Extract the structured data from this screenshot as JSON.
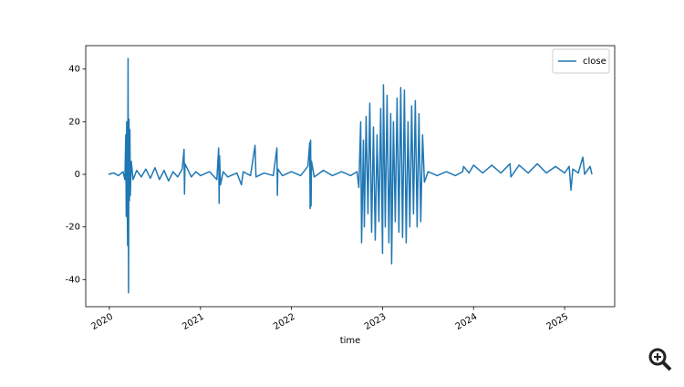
{
  "chart_data": {
    "type": "line",
    "xlabel": "time",
    "x": [
      2019.99,
      2020.05,
      2020.1,
      2020.15,
      2020.17,
      2020.18,
      2020.185,
      2020.19,
      2020.2,
      2020.205,
      2020.21,
      2020.215,
      2020.22,
      2020.225,
      2020.23,
      2020.24,
      2020.26,
      2020.3,
      2020.35,
      2020.4,
      2020.45,
      2020.5,
      2020.55,
      2020.6,
      2020.65,
      2020.7,
      2020.75,
      2020.8,
      2020.82,
      2020.825,
      2020.83,
      2020.9,
      2020.95,
      2021.0,
      2021.1,
      2021.18,
      2021.2,
      2021.205,
      2021.21,
      2021.22,
      2021.25,
      2021.3,
      2021.4,
      2021.45,
      2021.47,
      2021.55,
      2021.6,
      2021.61,
      2021.7,
      2021.8,
      2021.84,
      2021.845,
      2021.85,
      2021.9,
      2022.0,
      2022.1,
      2022.18,
      2022.2,
      2022.205,
      2022.21,
      2022.215,
      2022.22,
      2022.25,
      2022.35,
      2022.45,
      2022.55,
      2022.65,
      2022.72,
      2022.74,
      2022.76,
      2022.77,
      2022.79,
      2022.8,
      2022.82,
      2022.84,
      2022.86,
      2022.88,
      2022.9,
      2022.92,
      2022.94,
      2022.96,
      2022.98,
      2023.0,
      2023.01,
      2023.03,
      2023.05,
      2023.07,
      2023.09,
      2023.1,
      2023.12,
      2023.14,
      2023.16,
      2023.18,
      2023.2,
      2023.22,
      2023.24,
      2023.26,
      2023.28,
      2023.3,
      2023.32,
      2023.34,
      2023.36,
      2023.38,
      2023.4,
      2023.42,
      2023.44,
      2023.46,
      2023.5,
      2023.6,
      2023.7,
      2023.8,
      2023.88,
      2023.89,
      2023.95,
      2024.0,
      2024.1,
      2024.2,
      2024.3,
      2024.4,
      2024.41,
      2024.5,
      2024.6,
      2024.7,
      2024.8,
      2024.9,
      2025.0,
      2025.05,
      2025.07,
      2025.09,
      2025.15,
      2025.2,
      2025.22,
      2025.28,
      2025.3
    ],
    "series": [
      {
        "name": "close",
        "color": "#1f77b4",
        "values": [
          0,
          0.5,
          -0.5,
          1,
          -2,
          15,
          -16,
          20,
          -27,
          44,
          -45,
          21,
          -10,
          17,
          -8,
          5,
          -2,
          1.5,
          -1,
          2,
          -1.5,
          2.5,
          -2,
          1.5,
          -2.5,
          1,
          -1,
          2,
          9.5,
          -7.5,
          4,
          -1,
          1,
          -0.5,
          1,
          -2,
          10,
          -11,
          7,
          -4,
          1,
          -1,
          0.5,
          -4,
          1,
          -0.5,
          11,
          -1,
          0.5,
          -0.5,
          10,
          -8,
          2,
          -0.5,
          1,
          -0.5,
          3,
          12,
          -13,
          13,
          -12,
          5,
          -1,
          1.5,
          -0.5,
          1,
          -0.5,
          1,
          -5,
          20,
          -26,
          13,
          -20,
          22,
          -15,
          27,
          -22,
          18,
          -25,
          15,
          -18,
          25,
          -30,
          34,
          -20,
          30,
          -26,
          23,
          -34,
          20,
          -18,
          29,
          -22,
          33,
          -24,
          32,
          -26,
          20,
          -20,
          26,
          -15,
          28,
          -20,
          23,
          -18,
          15,
          -3,
          1,
          -0.5,
          1,
          -0.5,
          1,
          3,
          0.5,
          3.5,
          0.5,
          3.5,
          0.5,
          4,
          -1,
          3.5,
          0.5,
          4,
          0.5,
          3,
          0.5,
          3,
          -6,
          2,
          0.5,
          6.5,
          0,
          3,
          0
        ]
      }
    ],
    "xlim": [
      2019.74,
      2025.55
    ],
    "xticks": [
      2020,
      2021,
      2022,
      2023,
      2024,
      2025
    ],
    "ylim": [
      -50.3,
      48.9
    ],
    "yticks": [
      -40,
      -20,
      0,
      20,
      40
    ],
    "legend": "upper right"
  }
}
